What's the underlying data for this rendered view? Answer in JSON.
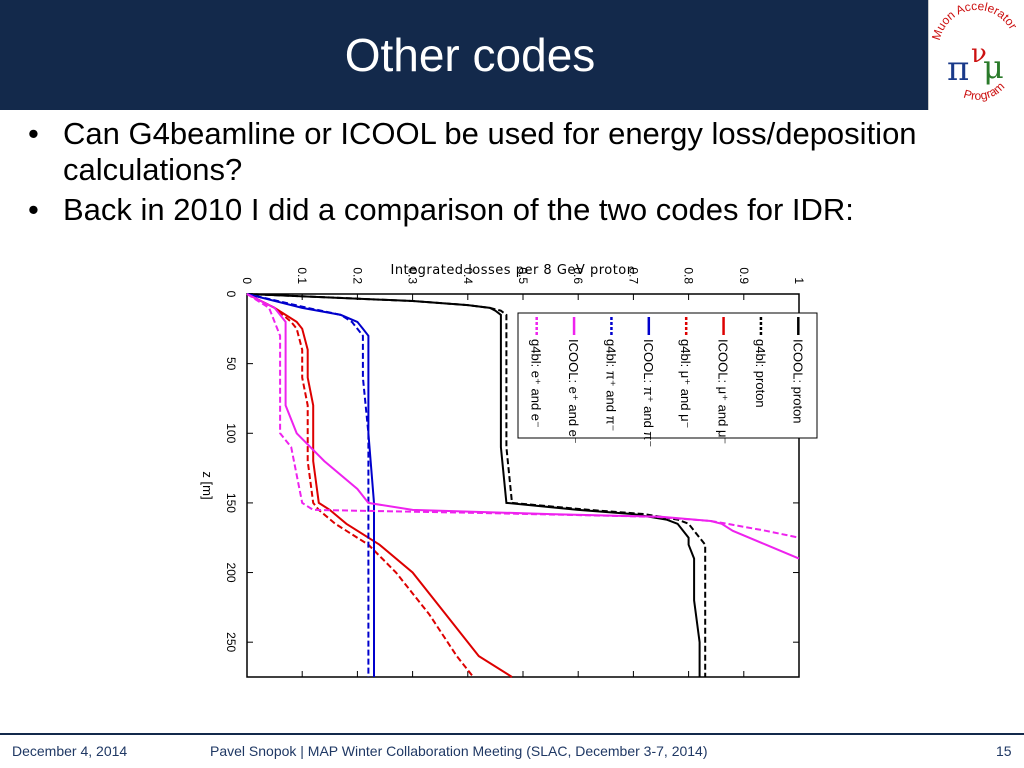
{
  "slide": {
    "title": "Other codes",
    "bullets": [
      "Can G4beamline or ICOOL be used for energy loss/deposition calculations?",
      "Back in 2010 I did a comparison of the two codes for IDR:"
    ]
  },
  "logo": {
    "top_text": "Muon Accelerator",
    "bottom_text": "Program",
    "symbols": [
      "π",
      "ν",
      "μ"
    ]
  },
  "footer": {
    "date": "December 4, 2014",
    "center": "Pavel Snopok | MAP Winter Collaboration Meeting (SLAC, December 3-7, 2014)",
    "page": "15"
  },
  "colors": {
    "header_bg": "#13294b",
    "proton": "#000000",
    "mu": "#dd0000",
    "pi": "#0000cc",
    "e": "#ee22ee"
  },
  "chart_data": {
    "type": "line",
    "title": "Integrated losses per 8 GeV proton",
    "xlabel": "z [m]",
    "ylabel": "",
    "orientation": "rotated 90° clockwise (z axis vertical, loss axis horizontal)",
    "xlim": [
      0,
      275
    ],
    "ylim": [
      0,
      1
    ],
    "x_ticks": [
      "0",
      "50",
      "100",
      "150",
      "200",
      "250"
    ],
    "y_ticks": [
      "0",
      "0.1",
      "0.2",
      "0.3",
      "0.4",
      "0.5",
      "0.6",
      "0.7",
      "0.8",
      "0.9",
      "1"
    ],
    "grid": false,
    "legend_position": "top-right",
    "series": [
      {
        "name": "ICOOL: proton",
        "color": "#000000",
        "dash": false,
        "x": [
          0,
          5,
          8,
          10,
          12,
          15,
          20,
          30,
          50,
          80,
          100,
          110,
          150,
          155,
          158,
          162,
          165,
          170,
          175,
          180,
          190,
          200,
          220,
          250,
          275
        ],
        "y": [
          0,
          0.3,
          0.4,
          0.44,
          0.45,
          0.46,
          0.46,
          0.46,
          0.46,
          0.46,
          0.46,
          0.46,
          0.47,
          0.6,
          0.7,
          0.76,
          0.78,
          0.79,
          0.8,
          0.8,
          0.81,
          0.81,
          0.81,
          0.82,
          0.82
        ]
      },
      {
        "name": "g4bl: proton",
        "color": "#000000",
        "dash": true,
        "x": [
          0,
          5,
          8,
          10,
          12,
          15,
          20,
          30,
          50,
          80,
          100,
          110,
          150,
          155,
          158,
          162,
          165,
          170,
          175,
          180,
          190,
          200,
          220,
          250,
          275
        ],
        "y": [
          0,
          0.3,
          0.4,
          0.44,
          0.46,
          0.47,
          0.47,
          0.47,
          0.47,
          0.47,
          0.47,
          0.47,
          0.48,
          0.62,
          0.72,
          0.78,
          0.8,
          0.81,
          0.82,
          0.83,
          0.83,
          0.83,
          0.83,
          0.83,
          0.83
        ]
      },
      {
        "name": "ICOOL: μ⁺ and μ⁻",
        "color": "#dd0000",
        "dash": false,
        "x": [
          0,
          10,
          20,
          25,
          40,
          60,
          80,
          100,
          120,
          150,
          155,
          165,
          180,
          200,
          230,
          260,
          275
        ],
        "y": [
          0,
          0.05,
          0.09,
          0.1,
          0.11,
          0.11,
          0.12,
          0.12,
          0.12,
          0.13,
          0.15,
          0.18,
          0.24,
          0.3,
          0.36,
          0.42,
          0.48
        ]
      },
      {
        "name": "g4bl: μ⁺ and μ⁻",
        "color": "#dd0000",
        "dash": true,
        "x": [
          0,
          10,
          20,
          25,
          40,
          60,
          80,
          100,
          120,
          150,
          155,
          165,
          180,
          200,
          230,
          260,
          275
        ],
        "y": [
          0,
          0.05,
          0.08,
          0.09,
          0.1,
          0.1,
          0.11,
          0.11,
          0.11,
          0.12,
          0.13,
          0.16,
          0.22,
          0.27,
          0.33,
          0.38,
          0.41
        ]
      },
      {
        "name": "ICOOL: π⁺ and π⁻",
        "color": "#0000cc",
        "dash": false,
        "x": [
          0,
          10,
          15,
          20,
          25,
          30,
          40,
          60,
          100,
          150,
          200,
          250,
          275
        ],
        "y": [
          0,
          0.1,
          0.17,
          0.2,
          0.21,
          0.22,
          0.22,
          0.22,
          0.22,
          0.23,
          0.23,
          0.23,
          0.23
        ]
      },
      {
        "name": "g4bl: π⁺ and π⁻",
        "color": "#0000cc",
        "dash": true,
        "x": [
          0,
          10,
          15,
          20,
          25,
          30,
          40,
          60,
          100,
          150,
          200,
          250,
          275
        ],
        "y": [
          0,
          0.11,
          0.17,
          0.19,
          0.2,
          0.21,
          0.21,
          0.21,
          0.22,
          0.22,
          0.22,
          0.22,
          0.22
        ]
      },
      {
        "name": "ICOOL: e⁺ and e⁻",
        "color": "#ee22ee",
        "dash": false,
        "x": [
          0,
          10,
          20,
          25,
          30,
          50,
          80,
          100,
          120,
          140,
          150,
          155,
          158,
          160,
          163,
          165,
          170,
          180,
          190
        ],
        "y": [
          0,
          0.05,
          0.07,
          0.07,
          0.07,
          0.07,
          0.07,
          0.09,
          0.14,
          0.2,
          0.22,
          0.3,
          0.55,
          0.75,
          0.84,
          0.86,
          0.88,
          0.94,
          1.0
        ]
      },
      {
        "name": "g4bl: e⁺ and e⁻",
        "color": "#ee22ee",
        "dash": true,
        "x": [
          0,
          10,
          20,
          30,
          50,
          80,
          100,
          110,
          130,
          150,
          155,
          157,
          160,
          163,
          165,
          170,
          175
        ],
        "y": [
          0,
          0.04,
          0.05,
          0.06,
          0.06,
          0.06,
          0.06,
          0.08,
          0.09,
          0.1,
          0.12,
          0.4,
          0.74,
          0.84,
          0.87,
          0.94,
          1.0
        ]
      }
    ]
  }
}
